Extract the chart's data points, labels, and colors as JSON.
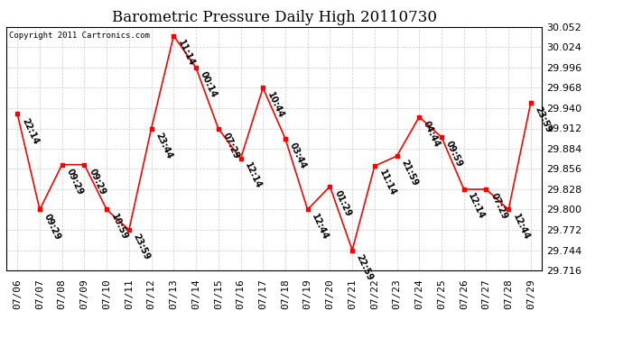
{
  "title": "Barometric Pressure Daily High 20110730",
  "copyright": "Copyright 2011 Cartronics.com",
  "dates": [
    "07/06",
    "07/07",
    "07/08",
    "07/09",
    "07/10",
    "07/11",
    "07/12",
    "07/13",
    "07/14",
    "07/15",
    "07/16",
    "07/17",
    "07/18",
    "07/19",
    "07/20",
    "07/21",
    "07/22",
    "07/23",
    "07/24",
    "07/25",
    "07/26",
    "07/27",
    "07/28",
    "07/29"
  ],
  "values": [
    29.932,
    29.8,
    29.862,
    29.862,
    29.8,
    29.772,
    29.912,
    30.04,
    29.996,
    29.912,
    29.87,
    29.968,
    29.898,
    29.8,
    29.832,
    29.744,
    29.86,
    29.874,
    29.928,
    29.9,
    29.828,
    29.828,
    29.8,
    29.948
  ],
  "times": [
    "22:14",
    "09:29",
    "09:29",
    "09:29",
    "10:59",
    "23:59",
    "23:44",
    "11:14",
    "00:14",
    "07:29",
    "12:14",
    "10:44",
    "03:44",
    "12:44",
    "01:29",
    "22:59",
    "11:14",
    "21:59",
    "04:44",
    "09:59",
    "12:14",
    "07:29",
    "12:44",
    "23:59"
  ],
  "ylim": [
    29.716,
    30.052
  ],
  "ytick_step": 0.028,
  "line_color": "red",
  "marker_color": "red",
  "bg_color": "white",
  "grid_color": "#cccccc",
  "title_fontsize": 12,
  "label_fontsize": 7,
  "tick_fontsize": 8
}
